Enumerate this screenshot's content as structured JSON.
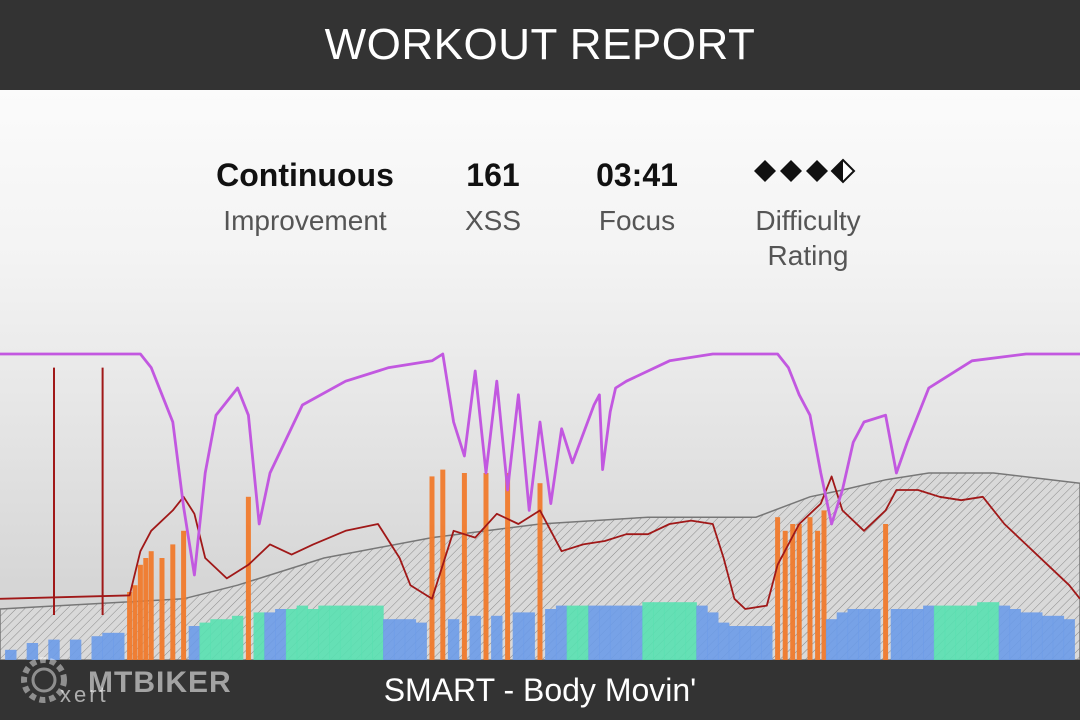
{
  "header": {
    "title": "WORKOUT REPORT"
  },
  "stats": [
    {
      "value": "Continuous",
      "label": "Improvement"
    },
    {
      "value": "161",
      "label": "XSS"
    },
    {
      "value": "03:41",
      "label": "Focus"
    },
    {
      "value": "",
      "label": "Difficulty\nRating",
      "diamonds_filled": 3,
      "diamonds_half": 1
    }
  ],
  "footer": {
    "title": "SMART - Body Movin'",
    "watermark_brand": "MTBIKER",
    "watermark_app": "xert"
  },
  "colors": {
    "header_bg": "#333333",
    "purple_line": "#c258e0",
    "purple_dark": "#7a2c86",
    "red_line": "#a01818",
    "mpa_fill": "#c7c7c7",
    "bar_low": "#6c9be8",
    "bar_mid": "#58e0b0",
    "bar_high": "#f07a2c"
  },
  "chart_data": {
    "type": "area",
    "title": "",
    "xlabel": "",
    "ylabel": "",
    "x_range": [
      0,
      100
    ],
    "series": [
      {
        "kind": "purple",
        "points": [
          [
            0,
            90
          ],
          [
            13,
            90
          ],
          [
            14,
            86
          ],
          [
            15,
            78
          ],
          [
            16,
            70
          ],
          [
            17,
            45
          ],
          [
            18,
            25
          ],
          [
            19,
            55
          ],
          [
            20,
            72
          ],
          [
            22,
            80
          ],
          [
            23,
            72
          ],
          [
            24,
            40
          ],
          [
            25,
            55
          ],
          [
            28,
            75
          ],
          [
            32,
            82
          ],
          [
            36,
            86
          ],
          [
            40,
            88
          ],
          [
            41,
            90
          ],
          [
            42,
            70
          ],
          [
            43,
            60
          ],
          [
            44,
            85
          ],
          [
            45,
            55
          ],
          [
            46,
            82
          ],
          [
            47,
            50
          ],
          [
            48,
            78
          ],
          [
            49,
            44
          ],
          [
            50,
            70
          ],
          [
            51,
            46
          ],
          [
            52,
            68
          ],
          [
            53,
            58
          ],
          [
            55,
            75
          ],
          [
            57,
            80
          ],
          [
            55.5,
            78
          ],
          [
            55.8,
            56
          ],
          [
            56.5,
            73
          ],
          [
            58,
            82
          ],
          [
            62,
            88
          ],
          [
            66,
            90
          ],
          [
            72,
            90
          ],
          [
            73,
            86
          ],
          [
            74,
            78
          ],
          [
            75,
            72
          ],
          [
            76,
            55
          ],
          [
            77,
            40
          ],
          [
            78,
            50
          ],
          [
            79,
            64
          ],
          [
            80,
            70
          ],
          [
            82,
            72
          ],
          [
            83,
            55
          ],
          [
            84,
            64
          ],
          [
            86,
            80
          ],
          [
            90,
            88
          ],
          [
            95,
            90
          ],
          [
            100,
            90
          ]
        ]
      },
      {
        "kind": "red",
        "points": [
          [
            0,
            18
          ],
          [
            12,
            19
          ],
          [
            13,
            32
          ],
          [
            14,
            38
          ],
          [
            16,
            44
          ],
          [
            17,
            48
          ],
          [
            18,
            43
          ],
          [
            19,
            30
          ],
          [
            21,
            24
          ],
          [
            23,
            28
          ],
          [
            25,
            34
          ],
          [
            27,
            31
          ],
          [
            29,
            34
          ],
          [
            32,
            38
          ],
          [
            35,
            40
          ],
          [
            37,
            30
          ],
          [
            38,
            22
          ],
          [
            40,
            18
          ],
          [
            42,
            38
          ],
          [
            44,
            36
          ],
          [
            46,
            43
          ],
          [
            48,
            40
          ],
          [
            50,
            44
          ],
          [
            52,
            32
          ],
          [
            54,
            34
          ],
          [
            56,
            35
          ],
          [
            58,
            37
          ],
          [
            60,
            37
          ],
          [
            62,
            40
          ],
          [
            64,
            41
          ],
          [
            66,
            40
          ],
          [
            67,
            30
          ],
          [
            68,
            18
          ],
          [
            69,
            15
          ],
          [
            71,
            16
          ],
          [
            72,
            28
          ],
          [
            74,
            40
          ],
          [
            76,
            46
          ],
          [
            77,
            54
          ],
          [
            78,
            44
          ],
          [
            80,
            38
          ],
          [
            82,
            44
          ],
          [
            83,
            50
          ],
          [
            85,
            50
          ],
          [
            87,
            48
          ],
          [
            89,
            47
          ],
          [
            91,
            48
          ],
          [
            93,
            40
          ],
          [
            95,
            34
          ],
          [
            97,
            28
          ],
          [
            99,
            22
          ],
          [
            100,
            18
          ]
        ]
      },
      {
        "kind": "mpa",
        "points": [
          [
            0,
            15
          ],
          [
            17,
            18
          ],
          [
            22,
            22
          ],
          [
            30,
            30
          ],
          [
            40,
            36
          ],
          [
            50,
            40
          ],
          [
            60,
            42
          ],
          [
            70,
            42
          ],
          [
            75,
            48
          ],
          [
            78,
            50
          ],
          [
            82,
            53
          ],
          [
            86,
            55
          ],
          [
            92,
            55
          ],
          [
            100,
            52
          ]
        ]
      },
      {
        "kind": "bars",
        "points": [
          [
            1,
            3,
            "low"
          ],
          [
            3,
            5,
            "low"
          ],
          [
            5,
            6,
            "low"
          ],
          [
            7,
            6,
            "low"
          ],
          [
            9,
            7,
            "low"
          ],
          [
            10,
            8,
            "low"
          ],
          [
            11,
            8,
            "low"
          ],
          [
            12,
            20,
            "high"
          ],
          [
            12.5,
            22,
            "high"
          ],
          [
            13,
            28,
            "high"
          ],
          [
            13.5,
            30,
            "high"
          ],
          [
            14,
            32,
            "high"
          ],
          [
            15,
            30,
            "high"
          ],
          [
            16,
            34,
            "high"
          ],
          [
            17,
            38,
            "high"
          ],
          [
            18,
            10,
            "low"
          ],
          [
            19,
            11,
            "mid"
          ],
          [
            20,
            12,
            "mid"
          ],
          [
            21,
            12,
            "mid"
          ],
          [
            22,
            13,
            "mid"
          ],
          [
            23,
            48,
            "high"
          ],
          [
            24,
            14,
            "mid"
          ],
          [
            25,
            14,
            "low"
          ],
          [
            26,
            15,
            "low"
          ],
          [
            27,
            15,
            "mid"
          ],
          [
            28,
            16,
            "mid"
          ],
          [
            29,
            15,
            "mid"
          ],
          [
            30,
            16,
            "mid"
          ],
          [
            31,
            16,
            "mid"
          ],
          [
            32,
            16,
            "mid"
          ],
          [
            33,
            16,
            "mid"
          ],
          [
            34,
            16,
            "mid"
          ],
          [
            35,
            16,
            "mid"
          ],
          [
            36,
            12,
            "low"
          ],
          [
            37,
            12,
            "low"
          ],
          [
            38,
            12,
            "low"
          ],
          [
            39,
            11,
            "low"
          ],
          [
            40,
            54,
            "high"
          ],
          [
            41,
            56,
            "high"
          ],
          [
            42,
            12,
            "low"
          ],
          [
            43,
            55,
            "high"
          ],
          [
            44,
            13,
            "low"
          ],
          [
            45,
            55,
            "high"
          ],
          [
            46,
            13,
            "low"
          ],
          [
            47,
            55,
            "high"
          ],
          [
            48,
            14,
            "low"
          ],
          [
            49,
            14,
            "low"
          ],
          [
            50,
            52,
            "high"
          ],
          [
            51,
            15,
            "low"
          ],
          [
            52,
            16,
            "low"
          ],
          [
            53,
            16,
            "mid"
          ],
          [
            54,
            16,
            "mid"
          ],
          [
            55,
            16,
            "low"
          ],
          [
            56,
            16,
            "low"
          ],
          [
            57,
            16,
            "low"
          ],
          [
            58,
            16,
            "low"
          ],
          [
            59,
            16,
            "low"
          ],
          [
            60,
            17,
            "mid"
          ],
          [
            61,
            17,
            "mid"
          ],
          [
            62,
            17,
            "mid"
          ],
          [
            63,
            17,
            "mid"
          ],
          [
            64,
            17,
            "mid"
          ],
          [
            65,
            16,
            "low"
          ],
          [
            66,
            14,
            "low"
          ],
          [
            67,
            11,
            "low"
          ],
          [
            68,
            10,
            "low"
          ],
          [
            69,
            10,
            "low"
          ],
          [
            70,
            10,
            "low"
          ],
          [
            71,
            10,
            "low"
          ],
          [
            72,
            42,
            "high"
          ],
          [
            72.7,
            38,
            "high"
          ],
          [
            73.4,
            40,
            "high"
          ],
          [
            74,
            40,
            "high"
          ],
          [
            75,
            42,
            "high"
          ],
          [
            75.7,
            38,
            "high"
          ],
          [
            76.3,
            44,
            "high"
          ],
          [
            77,
            12,
            "low"
          ],
          [
            78,
            14,
            "low"
          ],
          [
            79,
            15,
            "low"
          ],
          [
            80,
            15,
            "low"
          ],
          [
            81,
            15,
            "low"
          ],
          [
            82,
            40,
            "high"
          ],
          [
            83,
            15,
            "low"
          ],
          [
            84,
            15,
            "low"
          ],
          [
            85,
            15,
            "low"
          ],
          [
            86,
            16,
            "low"
          ],
          [
            87,
            16,
            "mid"
          ],
          [
            88,
            16,
            "mid"
          ],
          [
            89,
            16,
            "mid"
          ],
          [
            90,
            16,
            "mid"
          ],
          [
            91,
            17,
            "mid"
          ],
          [
            92,
            17,
            "mid"
          ],
          [
            93,
            16,
            "low"
          ],
          [
            94,
            15,
            "low"
          ],
          [
            95,
            14,
            "low"
          ],
          [
            96,
            14,
            "low"
          ],
          [
            97,
            13,
            "low"
          ],
          [
            98,
            13,
            "low"
          ],
          [
            99,
            12,
            "low"
          ]
        ]
      },
      {
        "kind": "spikes",
        "points": [
          [
            5,
            86
          ],
          [
            9.5,
            86
          ]
        ]
      }
    ]
  }
}
